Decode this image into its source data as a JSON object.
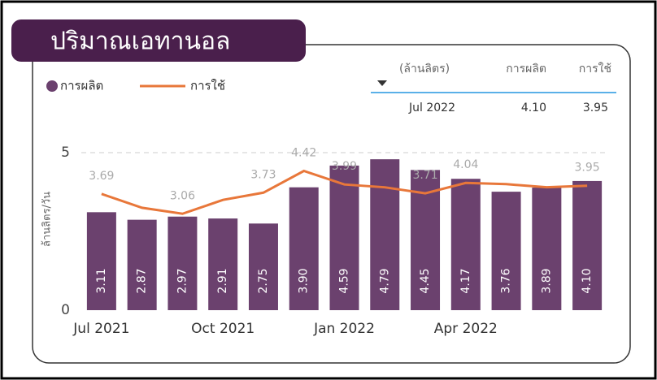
{
  "chart_data": {
    "type": "combo",
    "title": "ปริมาณเอทานอล",
    "y_label": "ล้านลิตร/วัน",
    "categories": [
      "Jul 2021",
      null,
      null,
      "Oct 2021",
      null,
      null,
      "Jan 2022",
      null,
      null,
      "Apr 2022",
      null,
      null,
      null
    ],
    "series": [
      {
        "name": "การผลิต",
        "type": "bar",
        "color": "#6b416e",
        "values": [
          3.11,
          2.87,
          2.97,
          2.91,
          2.75,
          3.9,
          4.59,
          4.79,
          4.45,
          4.17,
          3.76,
          3.89,
          4.1
        ],
        "value_labels": [
          "3.11",
          "2.87",
          "2.97",
          "2.91",
          "2.75",
          "3.90",
          "4.59",
          "4.79",
          "4.45",
          "4.17",
          "3.76",
          "3.89",
          "4.10"
        ]
      },
      {
        "name": "การใช้",
        "type": "line",
        "color": "#e8773a",
        "values": [
          3.69,
          3.25,
          3.06,
          3.5,
          3.73,
          4.42,
          3.99,
          3.9,
          3.71,
          4.04,
          4.0,
          3.9,
          3.95
        ],
        "value_labels": [
          "3.69",
          null,
          "3.06",
          null,
          "3.73",
          "4.42",
          "3.99",
          null,
          "3.71",
          "4.04",
          null,
          null,
          "3.95"
        ]
      }
    ],
    "ylim": [
      0,
      5
    ],
    "yticks": [
      0,
      5
    ],
    "grid": true
  },
  "table": {
    "header": [
      "(ล้านลิตร)",
      "การผลิต",
      "การใช้"
    ],
    "rows": [
      [
        "Jul 2022",
        "4.10",
        "3.95"
      ]
    ]
  }
}
